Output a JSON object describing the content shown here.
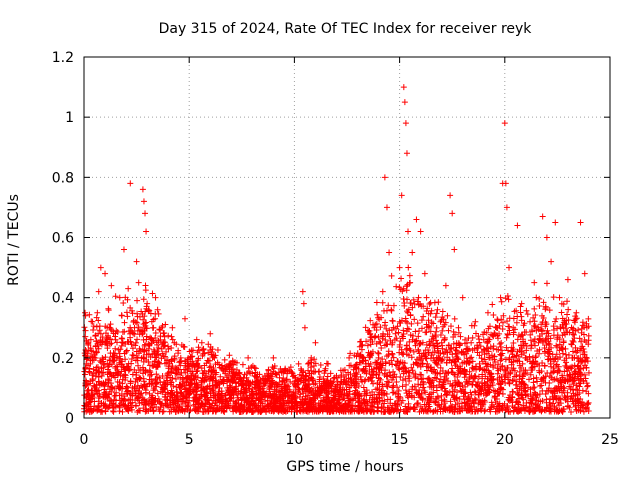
{
  "chart_data": {
    "type": "scatter",
    "title": "Day 315 of 2024, Rate Of TEC Index for receiver reyk",
    "xlabel": "GPS time / hours",
    "ylabel": "ROTI / TECUs",
    "xlim": [
      0,
      25
    ],
    "ylim": [
      0,
      1.2
    ],
    "xticks": [
      0,
      5,
      10,
      15,
      20,
      25
    ],
    "xtick_labels": [
      "0",
      "5",
      "10",
      "15",
      "20",
      "25"
    ],
    "yticks": [
      0,
      0.2,
      0.4,
      0.6,
      0.8,
      1.0,
      1.2
    ],
    "ytick_labels": [
      "0",
      "0.2",
      "0.4",
      "0.6",
      "0.8",
      "1",
      "1.2"
    ],
    "grid": true,
    "marker": "plus",
    "color": "#ff0000",
    "points": [
      [
        0.05,
        0.35
      ],
      [
        0.1,
        0.05
      ],
      [
        0.2,
        0.25
      ],
      [
        0.3,
        0.18
      ],
      [
        0.4,
        0.32
      ],
      [
        0.5,
        0.1
      ],
      [
        0.6,
        0.22
      ],
      [
        0.7,
        0.42
      ],
      [
        0.8,
        0.5
      ],
      [
        0.9,
        0.15
      ],
      [
        1.0,
        0.48
      ],
      [
        1.1,
        0.3
      ],
      [
        1.2,
        0.08
      ],
      [
        1.3,
        0.44
      ],
      [
        1.4,
        0.2
      ],
      [
        1.5,
        0.26
      ],
      [
        1.6,
        0.12
      ],
      [
        1.7,
        0.4
      ],
      [
        1.8,
        0.34
      ],
      [
        1.9,
        0.56
      ],
      [
        2.0,
        0.22
      ],
      [
        2.1,
        0.43
      ],
      [
        2.2,
        0.78
      ],
      [
        2.3,
        0.1
      ],
      [
        2.4,
        0.3
      ],
      [
        2.5,
        0.52
      ],
      [
        2.6,
        0.45
      ],
      [
        2.7,
        0.16
      ],
      [
        2.8,
        0.76
      ],
      [
        2.85,
        0.72
      ],
      [
        2.9,
        0.68
      ],
      [
        2.95,
        0.62
      ],
      [
        3.0,
        0.38
      ],
      [
        3.1,
        0.24
      ],
      [
        3.2,
        0.06
      ],
      [
        3.3,
        0.3
      ],
      [
        3.4,
        0.4
      ],
      [
        3.5,
        0.36
      ],
      [
        3.6,
        0.18
      ],
      [
        3.7,
        0.3
      ],
      [
        3.8,
        0.12
      ],
      [
        3.9,
        0.22
      ],
      [
        4.0,
        0.08
      ],
      [
        4.2,
        0.3
      ],
      [
        4.4,
        0.15
      ],
      [
        4.6,
        0.2
      ],
      [
        4.8,
        0.33
      ],
      [
        5.0,
        0.1
      ],
      [
        5.2,
        0.18
      ],
      [
        5.4,
        0.06
      ],
      [
        5.6,
        0.25
      ],
      [
        5.8,
        0.14
      ],
      [
        6.0,
        0.28
      ],
      [
        6.2,
        0.2
      ],
      [
        6.4,
        0.08
      ],
      [
        6.6,
        0.16
      ],
      [
        6.8,
        0.12
      ],
      [
        7.0,
        0.18
      ],
      [
        7.2,
        0.05
      ],
      [
        7.4,
        0.15
      ],
      [
        7.6,
        0.1
      ],
      [
        7.8,
        0.2
      ],
      [
        8.0,
        0.08
      ],
      [
        8.2,
        0.12
      ],
      [
        8.4,
        0.04
      ],
      [
        8.6,
        0.14
      ],
      [
        8.8,
        0.1
      ],
      [
        9.0,
        0.2
      ],
      [
        9.2,
        0.06
      ],
      [
        9.4,
        0.15
      ],
      [
        9.6,
        0.08
      ],
      [
        9.8,
        0.12
      ],
      [
        10.0,
        0.05
      ],
      [
        10.2,
        0.18
      ],
      [
        10.4,
        0.42
      ],
      [
        10.45,
        0.38
      ],
      [
        10.5,
        0.3
      ],
      [
        10.6,
        0.1
      ],
      [
        10.8,
        0.2
      ],
      [
        11.0,
        0.25
      ],
      [
        11.2,
        0.08
      ],
      [
        11.4,
        0.12
      ],
      [
        11.6,
        0.18
      ],
      [
        11.8,
        0.06
      ],
      [
        12.0,
        0.14
      ],
      [
        12.2,
        0.1
      ],
      [
        12.4,
        0.16
      ],
      [
        12.6,
        0.2
      ],
      [
        12.8,
        0.12
      ],
      [
        13.0,
        0.08
      ],
      [
        13.2,
        0.24
      ],
      [
        13.4,
        0.18
      ],
      [
        13.6,
        0.28
      ],
      [
        13.8,
        0.3
      ],
      [
        14.0,
        0.2
      ],
      [
        14.2,
        0.42
      ],
      [
        14.3,
        0.8
      ],
      [
        14.4,
        0.7
      ],
      [
        14.5,
        0.55
      ],
      [
        14.6,
        0.36
      ],
      [
        14.8,
        0.28
      ],
      [
        15.0,
        0.5
      ],
      [
        15.1,
        0.74
      ],
      [
        15.2,
        1.1
      ],
      [
        15.25,
        1.05
      ],
      [
        15.3,
        0.98
      ],
      [
        15.35,
        0.88
      ],
      [
        15.4,
        0.62
      ],
      [
        15.5,
        0.45
      ],
      [
        15.6,
        0.55
      ],
      [
        15.8,
        0.66
      ],
      [
        15.9,
        0.4
      ],
      [
        16.0,
        0.62
      ],
      [
        16.2,
        0.48
      ],
      [
        16.4,
        0.3
      ],
      [
        16.6,
        0.2
      ],
      [
        16.8,
        0.36
      ],
      [
        17.0,
        0.25
      ],
      [
        17.2,
        0.44
      ],
      [
        17.4,
        0.74
      ],
      [
        17.5,
        0.68
      ],
      [
        17.6,
        0.56
      ],
      [
        17.8,
        0.3
      ],
      [
        18.0,
        0.4
      ],
      [
        18.2,
        0.12
      ],
      [
        18.4,
        0.25
      ],
      [
        18.6,
        0.32
      ],
      [
        18.8,
        0.18
      ],
      [
        19.0,
        0.26
      ],
      [
        19.2,
        0.35
      ],
      [
        19.4,
        0.2
      ],
      [
        19.6,
        0.3
      ],
      [
        19.8,
        0.4
      ],
      [
        19.9,
        0.78
      ],
      [
        20.0,
        0.98
      ],
      [
        20.05,
        0.78
      ],
      [
        20.1,
        0.7
      ],
      [
        20.2,
        0.5
      ],
      [
        20.4,
        0.3
      ],
      [
        20.6,
        0.64
      ],
      [
        20.8,
        0.38
      ],
      [
        21.0,
        0.2
      ],
      [
        21.2,
        0.32
      ],
      [
        21.4,
        0.45
      ],
      [
        21.6,
        0.25
      ],
      [
        21.8,
        0.67
      ],
      [
        22.0,
        0.6
      ],
      [
        22.2,
        0.52
      ],
      [
        22.4,
        0.65
      ],
      [
        22.6,
        0.4
      ],
      [
        22.8,
        0.3
      ],
      [
        23.0,
        0.46
      ],
      [
        23.2,
        0.2
      ],
      [
        23.4,
        0.35
      ],
      [
        23.6,
        0.65
      ],
      [
        23.8,
        0.48
      ],
      [
        23.9,
        0.3
      ],
      [
        24.0,
        0.15
      ]
    ],
    "generated_cloud": {
      "description_of_shape": "dense points between 0 and upper envelope across 0-24 h",
      "x_range": [
        0,
        24
      ],
      "envelope_x": [
        0,
        1,
        2,
        3,
        4,
        5,
        6,
        7,
        8,
        9,
        10,
        11,
        12,
        13,
        14,
        15,
        16,
        17,
        18,
        19,
        20,
        21,
        22,
        23,
        24
      ],
      "envelope_y": [
        0.32,
        0.34,
        0.36,
        0.4,
        0.26,
        0.24,
        0.22,
        0.18,
        0.16,
        0.16,
        0.16,
        0.18,
        0.14,
        0.22,
        0.36,
        0.45,
        0.4,
        0.34,
        0.28,
        0.3,
        0.38,
        0.34,
        0.4,
        0.36,
        0.3
      ],
      "min_y": 0.02,
      "count": 4200
    }
  }
}
